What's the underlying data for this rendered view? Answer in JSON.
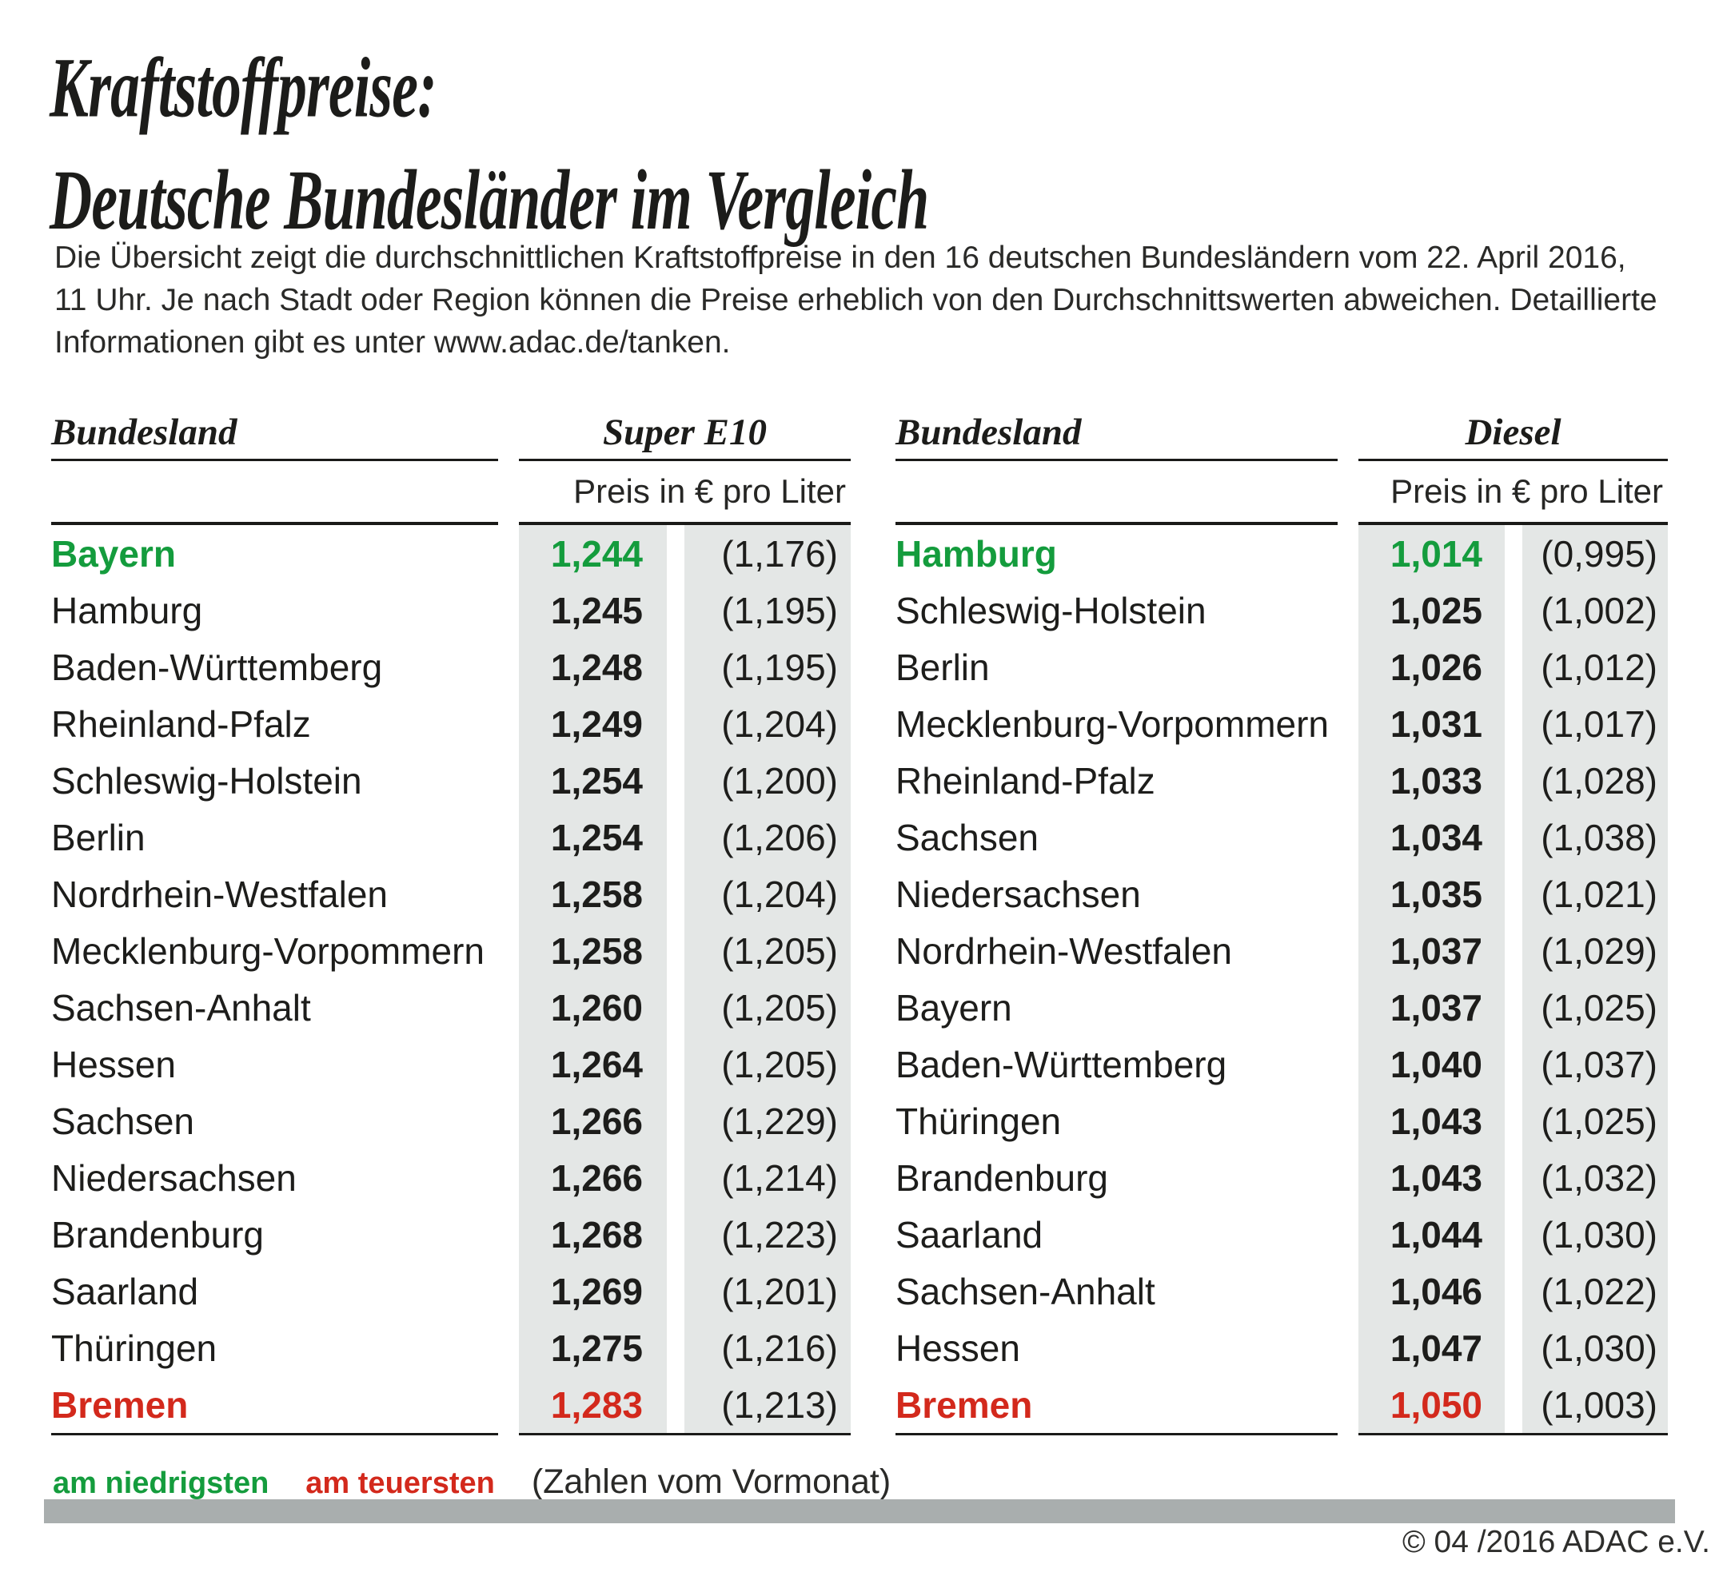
{
  "title": {
    "line1": "Kraftstoffpreise:",
    "line2": "Deutsche Bundesländer im Vergleich"
  },
  "intro": "Die Übersicht zeigt die durchschnittlichen Kraftstoffpreise in den 16 deutschen Bundesländern vom 22. April 2016, 11 Uhr. Je nach Stadt oder Region können die Preise erheblich von den Durchschnittswerten abweichen. Detaillierte Informationen gibt es unter www.adac.de/tanken.",
  "tables": [
    {
      "col_state": "Bundesland",
      "col_fuel": "Super E10",
      "col_price": "Preis in € pro Liter",
      "rows": [
        {
          "state": "Bayern",
          "price": "1,244",
          "prev": "(1,176)",
          "highlight": "lowest"
        },
        {
          "state": "Hamburg",
          "price": "1,245",
          "prev": "(1,195)"
        },
        {
          "state": "Baden-Württemberg",
          "price": "1,248",
          "prev": "(1,195)"
        },
        {
          "state": "Rheinland-Pfalz",
          "price": "1,249",
          "prev": "(1,204)"
        },
        {
          "state": "Schleswig-Holstein",
          "price": "1,254",
          "prev": "(1,200)"
        },
        {
          "state": "Berlin",
          "price": "1,254",
          "prev": "(1,206)"
        },
        {
          "state": "Nordrhein-Westfalen",
          "price": "1,258",
          "prev": "(1,204)"
        },
        {
          "state": "Mecklenburg-Vorpommern",
          "price": "1,258",
          "prev": "(1,205)"
        },
        {
          "state": "Sachsen-Anhalt",
          "price": "1,260",
          "prev": "(1,205)"
        },
        {
          "state": "Hessen",
          "price": "1,264",
          "prev": "(1,205)"
        },
        {
          "state": "Sachsen",
          "price": "1,266",
          "prev": "(1,229)"
        },
        {
          "state": "Niedersachsen",
          "price": "1,266",
          "prev": "(1,214)"
        },
        {
          "state": "Brandenburg",
          "price": "1,268",
          "prev": "(1,223)"
        },
        {
          "state": "Saarland",
          "price": "1,269",
          "prev": "(1,201)"
        },
        {
          "state": "Thüringen",
          "price": "1,275",
          "prev": "(1,216)"
        },
        {
          "state": "Bremen",
          "price": "1,283",
          "prev": "(1,213)",
          "highlight": "highest"
        }
      ]
    },
    {
      "col_state": "Bundesland",
      "col_fuel": "Diesel",
      "col_price": "Preis in € pro Liter",
      "rows": [
        {
          "state": "Hamburg",
          "price": "1,014",
          "prev": "(0,995)",
          "highlight": "lowest"
        },
        {
          "state": "Schleswig-Holstein",
          "price": "1,025",
          "prev": "(1,002)"
        },
        {
          "state": "Berlin",
          "price": "1,026",
          "prev": "(1,012)"
        },
        {
          "state": "Mecklenburg-Vorpommern",
          "price": "1,031",
          "prev": "(1,017)"
        },
        {
          "state": "Rheinland-Pfalz",
          "price": "1,033",
          "prev": "(1,028)"
        },
        {
          "state": "Sachsen",
          "price": "1,034",
          "prev": "(1,038)"
        },
        {
          "state": "Niedersachsen",
          "price": "1,035",
          "prev": "(1,021)"
        },
        {
          "state": "Nordrhein-Westfalen",
          "price": "1,037",
          "prev": "(1,029)"
        },
        {
          "state": "Bayern",
          "price": "1,037",
          "prev": "(1,025)"
        },
        {
          "state": "Baden-Württemberg",
          "price": "1,040",
          "prev": "(1,037)"
        },
        {
          "state": "Thüringen",
          "price": "1,043",
          "prev": "(1,025)"
        },
        {
          "state": "Brandenburg",
          "price": "1,043",
          "prev": "(1,032)"
        },
        {
          "state": "Saarland",
          "price": "1,044",
          "prev": "(1,030)"
        },
        {
          "state": "Sachsen-Anhalt",
          "price": "1,046",
          "prev": "(1,022)"
        },
        {
          "state": "Hessen",
          "price": "1,047",
          "prev": "(1,030)"
        },
        {
          "state": "Bremen",
          "price": "1,050",
          "prev": "(1,003)",
          "highlight": "highest"
        }
      ]
    }
  ],
  "legend": {
    "lowest": "am niedrigsten",
    "highest": "am teuersten",
    "note": "(Zahlen vom Vormonat)"
  },
  "footer": "© 04 /2016 ADAC e.V.",
  "colors": {
    "lowest": "#149c3d",
    "highest": "#d3291c",
    "price_bg": "#e4e7e6",
    "divider_bar": "#a9aeae"
  },
  "chart_data": [
    {
      "type": "table",
      "title": "Super E10",
      "unit": "Preis in € pro Liter",
      "columns": [
        "Bundesland",
        "Preis in € pro Liter",
        "Vormonat"
      ],
      "rows": [
        [
          "Bayern",
          1.244,
          1.176
        ],
        [
          "Hamburg",
          1.245,
          1.195
        ],
        [
          "Baden-Württemberg",
          1.248,
          1.195
        ],
        [
          "Rheinland-Pfalz",
          1.249,
          1.204
        ],
        [
          "Schleswig-Holstein",
          1.254,
          1.2
        ],
        [
          "Berlin",
          1.254,
          1.206
        ],
        [
          "Nordrhein-Westfalen",
          1.258,
          1.204
        ],
        [
          "Mecklenburg-Vorpommern",
          1.258,
          1.205
        ],
        [
          "Sachsen-Anhalt",
          1.26,
          1.205
        ],
        [
          "Hessen",
          1.264,
          1.205
        ],
        [
          "Sachsen",
          1.266,
          1.229
        ],
        [
          "Niedersachsen",
          1.266,
          1.214
        ],
        [
          "Brandenburg",
          1.268,
          1.223
        ],
        [
          "Saarland",
          1.269,
          1.201
        ],
        [
          "Thüringen",
          1.275,
          1.216
        ],
        [
          "Bremen",
          1.283,
          1.213
        ]
      ],
      "lowest": "Bayern",
      "highest": "Bremen"
    },
    {
      "type": "table",
      "title": "Diesel",
      "unit": "Preis in € pro Liter",
      "columns": [
        "Bundesland",
        "Preis in € pro Liter",
        "Vormonat"
      ],
      "rows": [
        [
          "Hamburg",
          1.014,
          0.995
        ],
        [
          "Schleswig-Holstein",
          1.025,
          1.002
        ],
        [
          "Berlin",
          1.026,
          1.012
        ],
        [
          "Mecklenburg-Vorpommern",
          1.031,
          1.017
        ],
        [
          "Rheinland-Pfalz",
          1.033,
          1.028
        ],
        [
          "Sachsen",
          1.034,
          1.038
        ],
        [
          "Niedersachsen",
          1.035,
          1.021
        ],
        [
          "Nordrhein-Westfalen",
          1.037,
          1.029
        ],
        [
          "Bayern",
          1.037,
          1.025
        ],
        [
          "Baden-Württemberg",
          1.04,
          1.037
        ],
        [
          "Thüringen",
          1.043,
          1.025
        ],
        [
          "Brandenburg",
          1.043,
          1.032
        ],
        [
          "Saarland",
          1.044,
          1.03
        ],
        [
          "Sachsen-Anhalt",
          1.046,
          1.022
        ],
        [
          "Hessen",
          1.047,
          1.03
        ],
        [
          "Bremen",
          1.05,
          1.003
        ]
      ],
      "lowest": "Hamburg",
      "highest": "Bremen"
    }
  ]
}
